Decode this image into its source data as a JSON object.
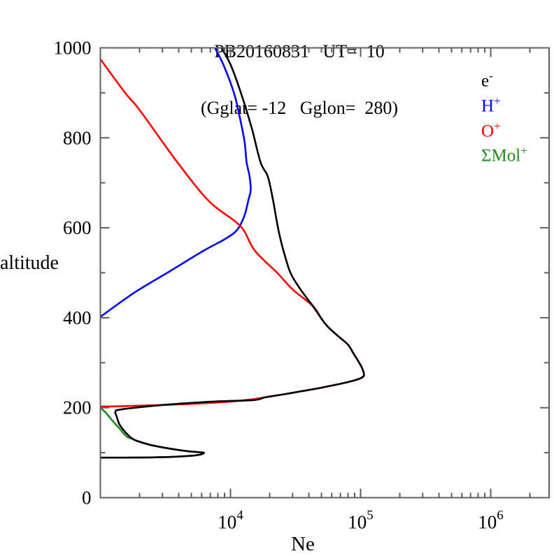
{
  "chart_data": {
    "type": "line",
    "title_line1": "PB20160831   UT=  10",
    "title_line2": "(Gglat= -12   Gglon=  280)",
    "xlabel": "Ne",
    "ylabel": "altitude",
    "x_axis": {
      "scale": "log",
      "min": 1000,
      "max": 2810000,
      "major_ticks": [
        10000,
        100000,
        1000000
      ],
      "major_tick_exponents": [
        4,
        5,
        6
      ],
      "tick_label_base": "10"
    },
    "y_axis": {
      "scale": "linear",
      "min": 0,
      "max": 1000,
      "major_ticks": [
        0,
        200,
        400,
        600,
        800,
        1000
      ],
      "minor_ticks": [
        100,
        300,
        500,
        700,
        900
      ]
    },
    "grid": "off",
    "legend_position": "inside-top-right",
    "legend": [
      {
        "base": "e",
        "sup": "-",
        "color": "#000000"
      },
      {
        "base": "H",
        "sup": "+",
        "color": "#0000ff"
      },
      {
        "base": "O",
        "sup": "+",
        "color": "#ff0000"
      },
      {
        "base": "ΣMol",
        "sup": "+",
        "color": "#1e8c1e"
      }
    ],
    "axis_color": "#5f5f5f",
    "series": [
      {
        "name": "H+",
        "color": "#0000ff",
        "points": [
          [
            1000,
            402
          ],
          [
            1850,
            457
          ],
          [
            3400,
            503
          ],
          [
            6300,
            550
          ],
          [
            9200,
            576
          ],
          [
            11300,
            596
          ],
          [
            12800,
            627
          ],
          [
            13800,
            664
          ],
          [
            14300,
            684
          ],
          [
            14000,
            715
          ],
          [
            13300,
            746
          ],
          [
            12800,
            793
          ],
          [
            11700,
            850
          ],
          [
            10600,
            901
          ],
          [
            8800,
            963
          ],
          [
            7600,
            1000
          ]
        ]
      },
      {
        "name": "Mol+",
        "color": "#1e8c1e",
        "points": [
          [
            1000,
            200
          ],
          [
            1100,
            189
          ],
          [
            1240,
            171
          ],
          [
            1390,
            155
          ],
          [
            1530,
            141
          ],
          [
            1630,
            134
          ],
          [
            1760,
            131
          ],
          [
            1920,
            126
          ],
          [
            2450,
            117
          ],
          [
            3420,
            109
          ],
          [
            4790,
            103
          ],
          [
            5830,
            101
          ],
          [
            6250,
            100
          ],
          [
            5980,
            96.5
          ],
          [
            5140,
            93.5
          ],
          [
            3420,
            90.5
          ],
          [
            2280,
            89.5
          ],
          [
            1490,
            89
          ],
          [
            1000,
            89
          ]
        ]
      },
      {
        "name": "O+",
        "color": "#ff0000",
        "points": [
          [
            1000,
            975
          ],
          [
            1550,
            900
          ],
          [
            2000,
            862
          ],
          [
            3900,
            746
          ],
          [
            6900,
            658
          ],
          [
            11900,
            604
          ],
          [
            15300,
            550
          ],
          [
            23000,
            499
          ],
          [
            30000,
            463
          ],
          [
            43000,
            426
          ],
          [
            50000,
            398
          ],
          [
            56000,
            380
          ],
          [
            66700,
            360
          ],
          [
            80000,
            340
          ],
          [
            88000,
            321
          ],
          [
            96600,
            302
          ],
          [
            103000,
            287
          ],
          [
            106000,
            271.5
          ],
          [
            97000,
            264
          ],
          [
            80000,
            257
          ],
          [
            62000,
            250
          ],
          [
            47000,
            243
          ],
          [
            34000,
            236
          ],
          [
            26000,
            230
          ],
          [
            18700,
            223.5
          ],
          [
            15000,
            219
          ],
          [
            10000,
            213.5
          ],
          [
            5400,
            209
          ],
          [
            2560,
            205.5
          ],
          [
            1500,
            203.5
          ],
          [
            1000,
            202.5
          ]
        ]
      },
      {
        "name": "e-",
        "color": "#000000",
        "points": [
          [
            1000,
            89
          ],
          [
            1490,
            89
          ],
          [
            2280,
            89.5
          ],
          [
            3420,
            90.5
          ],
          [
            5140,
            93.5
          ],
          [
            5980,
            96.5
          ],
          [
            6250,
            100
          ],
          [
            5830,
            101
          ],
          [
            4790,
            103
          ],
          [
            3420,
            109
          ],
          [
            2450,
            117
          ],
          [
            1920,
            126
          ],
          [
            1760,
            131
          ],
          [
            1650,
            138
          ],
          [
            1530,
            148
          ],
          [
            1400,
            163
          ],
          [
            1340,
            179
          ],
          [
            1300,
            189.5
          ],
          [
            1320,
            193
          ],
          [
            1360,
            195
          ],
          [
            1840,
            200
          ],
          [
            3420,
            207.5
          ],
          [
            7860,
            214
          ],
          [
            15100,
            217
          ],
          [
            18700,
            223.5
          ],
          [
            26000,
            230
          ],
          [
            34000,
            236
          ],
          [
            47000,
            243
          ],
          [
            62000,
            250
          ],
          [
            80000,
            257
          ],
          [
            97000,
            264
          ],
          [
            106000,
            271.5
          ],
          [
            103000,
            287
          ],
          [
            96600,
            302
          ],
          [
            88000,
            321
          ],
          [
            80000,
            340
          ],
          [
            66700,
            360
          ],
          [
            56000,
            380
          ],
          [
            50000,
            398
          ],
          [
            43000,
            426
          ],
          [
            34500,
            463
          ],
          [
            29000,
            499
          ],
          [
            26000,
            541
          ],
          [
            23800,
            584
          ],
          [
            22400,
            623
          ],
          [
            21000,
            669
          ],
          [
            19300,
            715
          ],
          [
            17000,
            746
          ],
          [
            14500,
            824
          ],
          [
            12000,
            901
          ],
          [
            10000,
            963
          ],
          [
            8500,
            1000
          ]
        ]
      }
    ]
  }
}
